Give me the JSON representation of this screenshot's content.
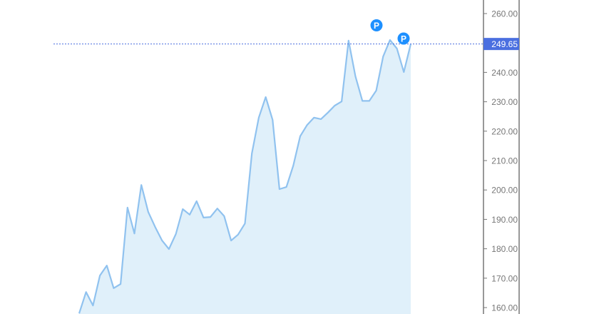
{
  "chart_data": {
    "type": "area",
    "title": "",
    "xlabel": "",
    "ylabel": "",
    "ylim": [
      157,
      264
    ],
    "grid": false,
    "y_ticks": [
      "160.00",
      "170.00",
      "180.00",
      "190.00",
      "200.00",
      "210.00",
      "220.00",
      "230.00",
      "240.00",
      "250.00",
      "260.00"
    ],
    "y_tick_values": [
      160,
      170,
      180,
      190,
      200,
      210,
      220,
      230,
      240,
      250,
      260
    ],
    "last_price_label": "249.65",
    "last_price": 249.65,
    "series": [
      {
        "values": [
          158.0,
          165.3,
          160.7,
          170.9,
          174.3,
          166.6,
          168.0,
          194.0,
          185.2,
          201.7,
          192.5,
          187.4,
          182.8,
          179.9,
          185.0,
          193.5,
          191.6,
          196.2,
          190.6,
          190.8,
          193.7,
          191.1,
          182.8,
          184.8,
          188.6,
          212.4,
          224.6,
          231.6,
          223.8,
          200.3,
          201.0,
          208.3,
          218.3,
          222.1,
          224.6,
          224.1,
          226.3,
          228.7,
          230.1,
          250.8,
          238.6,
          230.3,
          230.3,
          233.8,
          245.4,
          251.0,
          248.1,
          240.1,
          249.65
        ]
      }
    ],
    "markers": [
      {
        "label": "P",
        "index": 44,
        "value": 256
      },
      {
        "label": "P",
        "index": 48,
        "value": 251.5
      }
    ],
    "colors": {
      "line": "#90c2ef",
      "fill": "#e0f0fa",
      "marker": "#1e90ff",
      "price_line": "#4a6fe0",
      "price_label_bg": "#4a6fe0",
      "axis": "#555555"
    }
  }
}
